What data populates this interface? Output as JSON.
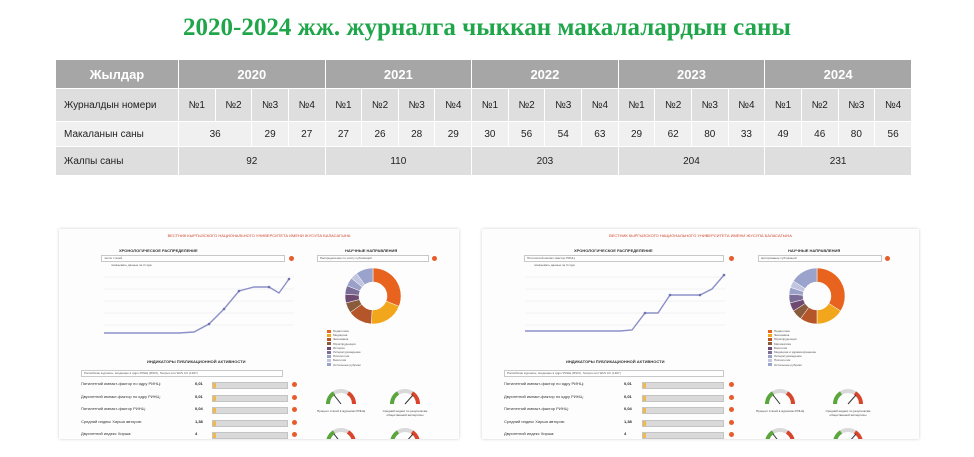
{
  "title": "2020-2024 жж. журналга чыккан макалалардын саны",
  "table": {
    "header_label": "Жылдар",
    "years": [
      "2020",
      "2021",
      "2022",
      "2023",
      "2024"
    ],
    "row_issue_label": "Журналдын номери",
    "issues": [
      "№1",
      "№2",
      "№3",
      "№4"
    ],
    "row_count_label": "Макаланын саны",
    "counts": [
      [
        "36",
        "",
        "29",
        "27"
      ],
      [
        "27",
        "26",
        "28",
        "29"
      ],
      [
        "30",
        "56",
        "54",
        "63"
      ],
      [
        "29",
        "62",
        "80",
        "33"
      ],
      [
        "49",
        "46",
        "80",
        "56"
      ]
    ],
    "row_total_label": "Жалпы саны",
    "totals": [
      "92",
      "110",
      "203",
      "204",
      "231"
    ]
  },
  "screenshots": [
    {
      "header_text": "ВЕСТНИК КЫРГЫЗСКОГО НАЦИОНАЛЬНОГО УНИВЕРСИТЕТА ИМЕНИ ЖУСУПА БАЛАСАГЫНА",
      "chrono_label": "ХРОНОЛОГИЧЕСКОЕ РАСПРЕДЕЛЕНИЕ",
      "chrono_select": "число статей",
      "chrono_check": "показывать данные за 3 года",
      "science_label": "НАУЧНЫЕ НАПРАВЛЕНИЯ",
      "science_select": "Распределение по числу публикаций",
      "indicators_label": "ИНДИКАТОРЫ ПУБЛИКАЦИОННОЙ АКТИВНОСТИ",
      "indicators_select": "Российские журналы, входящие в ядро РИНЦ (RSCI), Scopus или WoS CC (1467)",
      "metrics": [
        {
          "label": "Пятилетний импакт-фактор по ядру РИНЦ:",
          "value": "0,01"
        },
        {
          "label": "Двухлетний импакт-фактор по ядру РИНЦ:",
          "value": "0,01"
        },
        {
          "label": "Пятилетний импакт-фактор РИНЦ:",
          "value": "0,04"
        },
        {
          "label": "Средний индекс Хирша авторов:",
          "value": "1,38"
        },
        {
          "label": "Двухлетний индекс Хирша:",
          "value": "4"
        }
      ],
      "gauge_captions": [
        "Процент статей в журналах РИНЦ",
        "Средний индекс по результатам общественной экспертизы"
      ],
      "legend": [
        "Педагогика",
        "Медицина",
        "Экономика",
        "Юриспруденция",
        "История",
        "Литературоведение",
        "Психология",
        "Биология",
        "Остальные рубрики"
      ]
    },
    {
      "header_text": "ВЕСТНИК КЫРГЫЗСКОГО НАЦИОНАЛЬНОГО УНИВЕРСИТЕТА ИМЕНИ ЖУСУПА БАЛАСАГЫНА",
      "chrono_label": "ХРОНОЛОГИЧЕСКОЕ РАСПРЕДЕЛЕНИЕ",
      "chrono_select": "Пятилетний импакт-фактор РИНЦ",
      "chrono_check": "показывать данные за 3 года",
      "science_label": "НАУЧНЫЕ НАПРАВЛЕНИЯ",
      "science_select": "Цитирование публикаций",
      "indicators_label": "ИНДИКАТОРЫ ПУБЛИКАЦИОННОЙ АКТИВНОСТИ",
      "indicators_select": "Российские журналы, входящие в ядро РИНЦ (RSCI), Scopus или WoS CC (1467)",
      "metrics": [
        {
          "label": "Пятилетний импакт-фактор по ядру РИНЦ:",
          "value": "0,01"
        },
        {
          "label": "Двухлетний импакт-фактор по ядру РИНЦ:",
          "value": "0,01"
        },
        {
          "label": "Пятилетний импакт-фактор РИНЦ:",
          "value": "0,04"
        },
        {
          "label": "Средний индекс Хирша авторов:",
          "value": "1,38"
        },
        {
          "label": "Двухлетний индекс Хирша:",
          "value": "4"
        }
      ],
      "gauge_captions": [
        "Процент статей в журналах РИНЦ",
        "Средний индекс по результатам общественной экспертизы"
      ],
      "legend": [
        "Педагогика",
        "Экономика",
        "Юриспруденция",
        "Математика",
        "Биология",
        "Медицина и здравоохранение",
        "Литературоведение",
        "Психология",
        "Остальные рубрики"
      ]
    }
  ],
  "colors": {
    "title": "#1fa64a",
    "header": "#a6a6a6",
    "row_dark": "#dedede",
    "row_light": "#f0f0f0",
    "donut": [
      "#e8641e",
      "#f2a61c",
      "#b4552a",
      "#8a5a3c",
      "#6e4a72",
      "#7a6c96",
      "#9aa0c8",
      "#c1c5e0",
      "#9aa3cc"
    ]
  }
}
